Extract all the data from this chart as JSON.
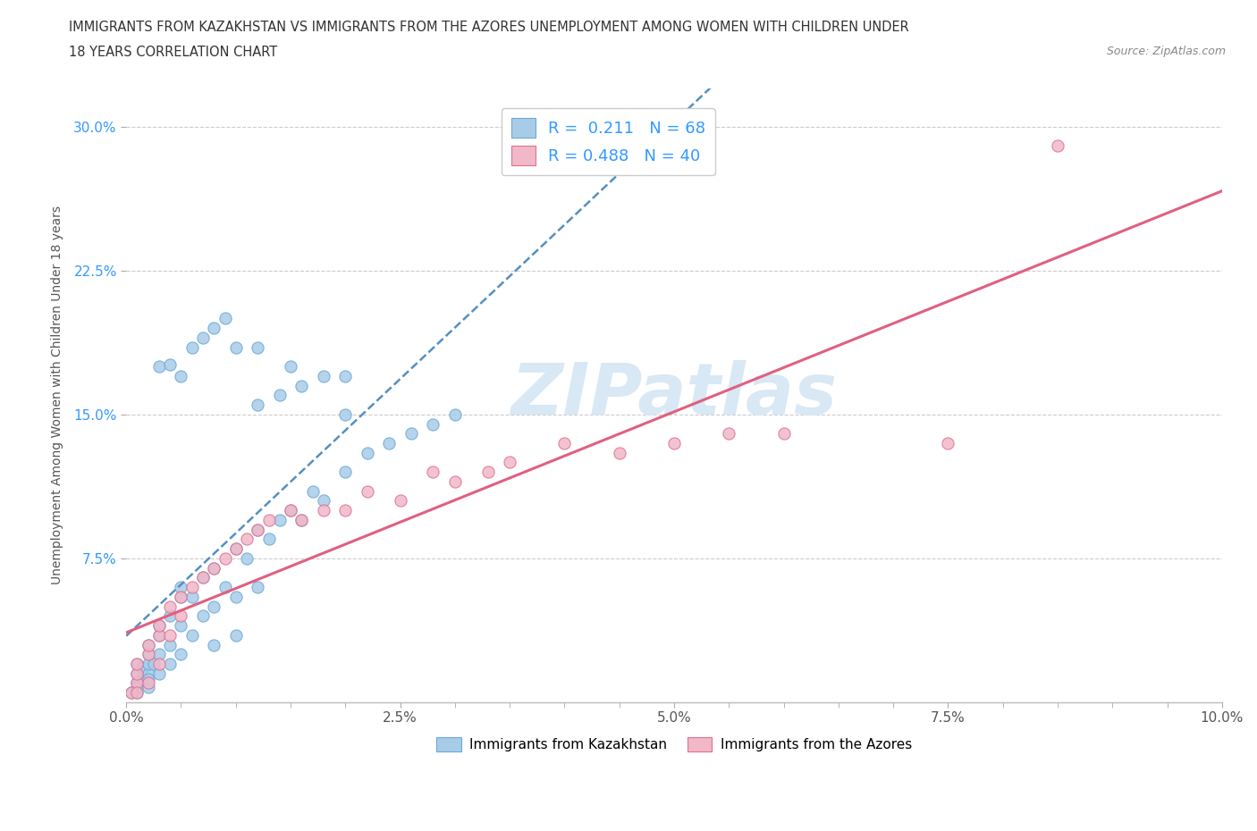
{
  "title_line1": "IMMIGRANTS FROM KAZAKHSTAN VS IMMIGRANTS FROM THE AZORES UNEMPLOYMENT AMONG WOMEN WITH CHILDREN UNDER",
  "title_line2": "18 YEARS CORRELATION CHART",
  "source_text": "Source: ZipAtlas.com",
  "ylabel": "Unemployment Among Women with Children Under 18 years",
  "xlim": [
    0.0,
    0.1
  ],
  "ylim": [
    0.0,
    0.32
  ],
  "xtick_labels": [
    "0.0%",
    "",
    "",
    "",
    "",
    "2.5%",
    "",
    "",
    "",
    "",
    "5.0%",
    "",
    "",
    "",
    "",
    "7.5%",
    "",
    "",
    "",
    "",
    "10.0%"
  ],
  "xtick_vals": [
    0.0,
    0.005,
    0.01,
    0.015,
    0.02,
    0.025,
    0.03,
    0.035,
    0.04,
    0.045,
    0.05,
    0.055,
    0.06,
    0.065,
    0.07,
    0.075,
    0.08,
    0.085,
    0.09,
    0.095,
    0.1
  ],
  "ytick_labels": [
    "7.5%",
    "15.0%",
    "22.5%",
    "30.0%"
  ],
  "ytick_vals": [
    0.075,
    0.15,
    0.225,
    0.3
  ],
  "kaz_R": 0.211,
  "kaz_N": 68,
  "azores_R": 0.488,
  "azores_N": 40,
  "kaz_scatter_color": "#a8cce8",
  "kaz_edge_color": "#6aa8d8",
  "azores_scatter_color": "#f0b8c8",
  "azores_edge_color": "#e07090",
  "kaz_line_color": "#5590c0",
  "azores_line_color": "#e06080",
  "watermark_color": "#d8e8f4",
  "background_color": "#ffffff",
  "grid_color": "#cccccc",
  "kaz_line_intercept": 0.0,
  "kaz_line_slope": 1.55,
  "azores_line_intercept": 0.0,
  "azores_line_slope": 1.55,
  "kazakhstan_x": [
    0.0005,
    0.001,
    0.001,
    0.001,
    0.001,
    0.001,
    0.0015,
    0.0015,
    0.002,
    0.002,
    0.002,
    0.002,
    0.002,
    0.002,
    0.0025,
    0.003,
    0.003,
    0.003,
    0.003,
    0.004,
    0.004,
    0.004,
    0.005,
    0.005,
    0.005,
    0.005,
    0.006,
    0.006,
    0.007,
    0.007,
    0.008,
    0.008,
    0.008,
    0.009,
    0.01,
    0.01,
    0.01,
    0.011,
    0.012,
    0.012,
    0.013,
    0.014,
    0.015,
    0.016,
    0.017,
    0.018,
    0.02,
    0.022,
    0.024,
    0.026,
    0.028,
    0.03,
    0.012,
    0.014,
    0.016,
    0.018,
    0.02,
    0.003,
    0.004,
    0.005,
    0.006,
    0.007,
    0.008,
    0.009,
    0.01,
    0.012,
    0.015,
    0.02
  ],
  "kazakhstan_y": [
    0.005,
    0.01,
    0.005,
    0.015,
    0.02,
    0.008,
    0.012,
    0.018,
    0.015,
    0.02,
    0.025,
    0.008,
    0.012,
    0.03,
    0.02,
    0.035,
    0.025,
    0.015,
    0.04,
    0.03,
    0.045,
    0.02,
    0.055,
    0.04,
    0.025,
    0.06,
    0.055,
    0.035,
    0.065,
    0.045,
    0.07,
    0.05,
    0.03,
    0.06,
    0.08,
    0.055,
    0.035,
    0.075,
    0.09,
    0.06,
    0.085,
    0.095,
    0.1,
    0.095,
    0.11,
    0.105,
    0.12,
    0.13,
    0.135,
    0.14,
    0.145,
    0.15,
    0.155,
    0.16,
    0.165,
    0.17,
    0.17,
    0.175,
    0.176,
    0.17,
    0.185,
    0.19,
    0.195,
    0.2,
    0.185,
    0.185,
    0.175,
    0.15
  ],
  "azores_x": [
    0.0005,
    0.001,
    0.001,
    0.001,
    0.001,
    0.002,
    0.002,
    0.002,
    0.003,
    0.003,
    0.003,
    0.004,
    0.004,
    0.005,
    0.005,
    0.006,
    0.007,
    0.008,
    0.009,
    0.01,
    0.011,
    0.012,
    0.013,
    0.015,
    0.016,
    0.018,
    0.02,
    0.022,
    0.025,
    0.028,
    0.03,
    0.033,
    0.035,
    0.04,
    0.045,
    0.05,
    0.055,
    0.06,
    0.075,
    0.085
  ],
  "azores_y": [
    0.005,
    0.01,
    0.005,
    0.015,
    0.02,
    0.025,
    0.01,
    0.03,
    0.035,
    0.02,
    0.04,
    0.035,
    0.05,
    0.045,
    0.055,
    0.06,
    0.065,
    0.07,
    0.075,
    0.08,
    0.085,
    0.09,
    0.095,
    0.1,
    0.095,
    0.1,
    0.1,
    0.11,
    0.105,
    0.12,
    0.115,
    0.12,
    0.125,
    0.135,
    0.13,
    0.135,
    0.14,
    0.14,
    0.135,
    0.29
  ]
}
